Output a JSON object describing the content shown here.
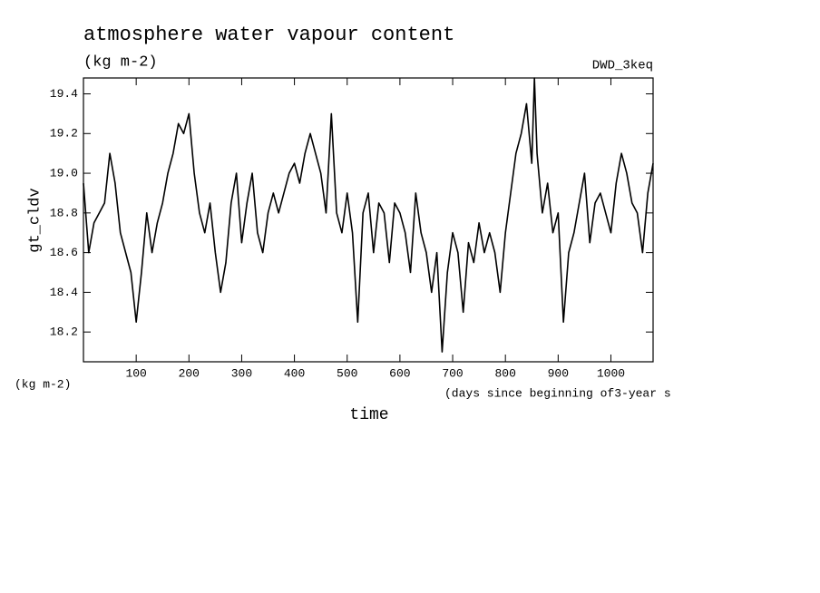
{
  "chart_data": {
    "type": "line",
    "title": "atmosphere water vapour content",
    "subtitle": "(kg m-2)",
    "tag": "DWD_3keq",
    "ylabel": "gt_cldv",
    "yunit": "(kg m-2)",
    "xlabel": "time",
    "xnote": "(days since beginning of3-year s",
    "x": [
      0,
      10,
      20,
      30,
      40,
      50,
      60,
      70,
      80,
      90,
      100,
      110,
      120,
      130,
      140,
      150,
      160,
      170,
      180,
      190,
      200,
      210,
      220,
      230,
      240,
      250,
      260,
      270,
      280,
      290,
      300,
      310,
      320,
      330,
      340,
      350,
      360,
      370,
      380,
      390,
      400,
      410,
      420,
      430,
      440,
      450,
      460,
      470,
      480,
      490,
      500,
      510,
      520,
      530,
      540,
      550,
      560,
      570,
      580,
      590,
      600,
      610,
      620,
      630,
      640,
      650,
      660,
      670,
      680,
      690,
      700,
      710,
      720,
      730,
      740,
      750,
      760,
      770,
      780,
      790,
      800,
      810,
      820,
      830,
      840,
      850,
      855,
      860,
      870,
      880,
      890,
      900,
      910,
      920,
      930,
      940,
      950,
      960,
      970,
      980,
      990,
      1000,
      1010,
      1020,
      1030,
      1040,
      1050,
      1060,
      1070,
      1080
    ],
    "series": [
      {
        "name": "gt_cldv",
        "color": "#000000",
        "values": [
          18.95,
          18.6,
          18.75,
          18.8,
          18.85,
          19.1,
          18.95,
          18.7,
          18.6,
          18.5,
          18.25,
          18.5,
          18.8,
          18.6,
          18.75,
          18.85,
          19.0,
          19.1,
          19.25,
          19.2,
          19.3,
          19.0,
          18.8,
          18.7,
          18.85,
          18.6,
          18.4,
          18.55,
          18.85,
          19.0,
          18.65,
          18.85,
          19.0,
          18.7,
          18.6,
          18.8,
          18.9,
          18.8,
          18.9,
          19.0,
          19.05,
          18.95,
          19.1,
          19.2,
          19.1,
          19.0,
          18.8,
          19.3,
          18.8,
          18.7,
          18.9,
          18.7,
          18.25,
          18.8,
          18.9,
          18.6,
          18.85,
          18.8,
          18.55,
          18.85,
          18.8,
          18.7,
          18.5,
          18.9,
          18.7,
          18.6,
          18.4,
          18.6,
          18.1,
          18.5,
          18.7,
          18.6,
          18.3,
          18.65,
          18.55,
          18.75,
          18.6,
          18.7,
          18.6,
          18.4,
          18.7,
          18.9,
          19.1,
          19.2,
          19.35,
          19.05,
          19.48,
          19.1,
          18.8,
          18.95,
          18.7,
          18.8,
          18.25,
          18.6,
          18.7,
          18.85,
          19.0,
          18.65,
          18.85,
          18.9,
          18.8,
          18.7,
          18.95,
          19.1,
          19.0,
          18.85,
          18.8,
          18.6,
          18.9,
          19.05
        ]
      }
    ],
    "xlim": [
      0,
      1080
    ],
    "ylim": [
      18.05,
      19.48
    ],
    "xticks": [
      100,
      200,
      300,
      400,
      500,
      600,
      700,
      800,
      900,
      1000
    ],
    "yticks": [
      18.2,
      18.4,
      18.6,
      18.8,
      {
        "value": 19,
        "label": "19.0"
      },
      19.2,
      19.4
    ]
  }
}
